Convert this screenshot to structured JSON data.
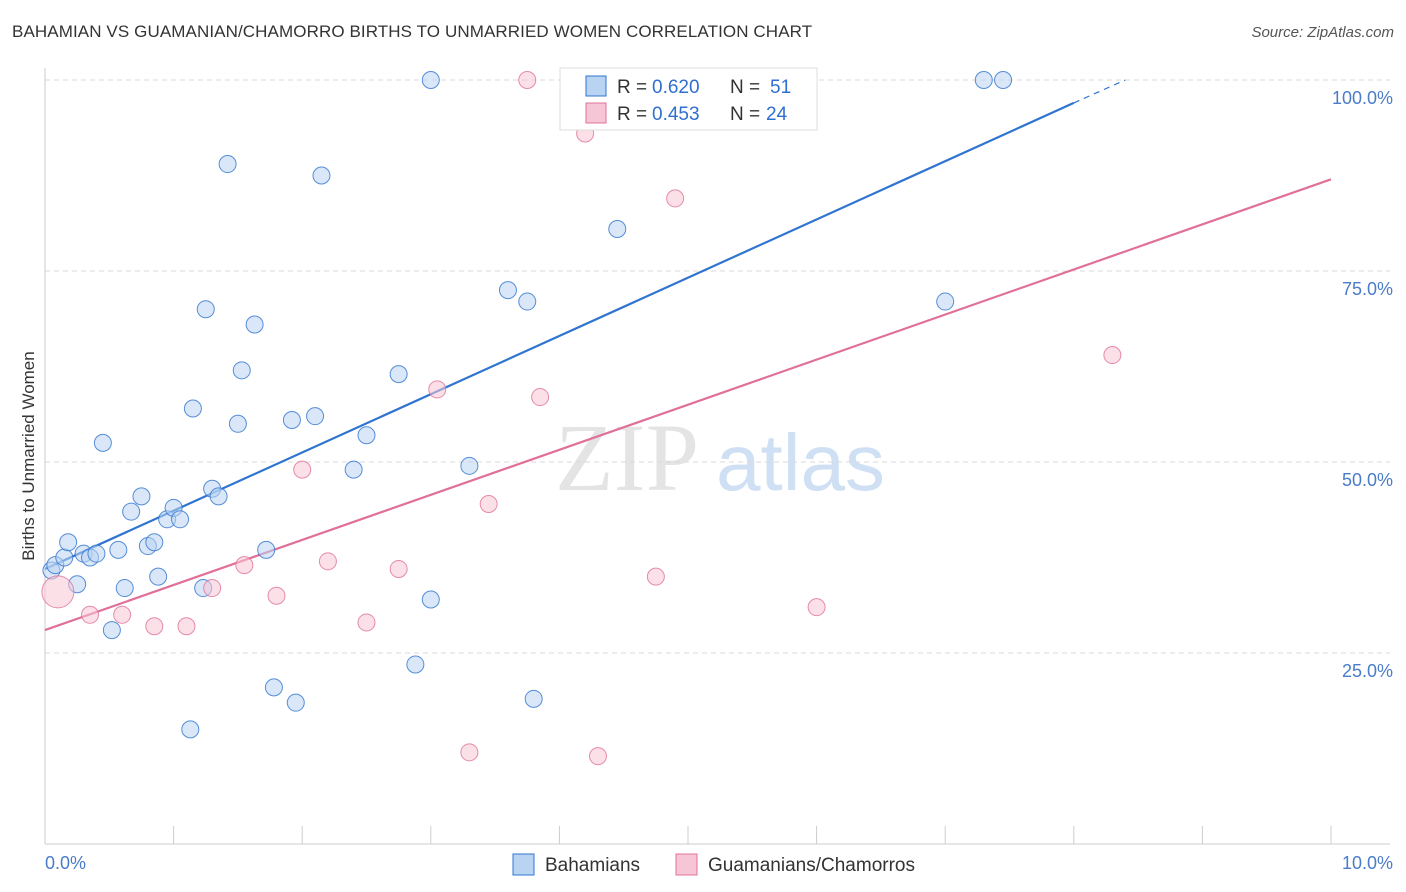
{
  "title": "BAHAMIAN VS GUAMANIAN/CHAMORRO BIRTHS TO UNMARRIED WOMEN CORRELATION CHART",
  "source": "Source: ZipAtlas.com",
  "colors": {
    "blue": "#2f74d0",
    "blue_fill": "#b9d3f3",
    "pink": "#e0709a",
    "pink_fill": "#f7c6d6",
    "accent_text": "#4a7cc9"
  },
  "chart_data": {
    "type": "scatter",
    "ylabel": "Births to Unmarried Women",
    "xlim": [
      0,
      10
    ],
    "ylim": [
      0,
      100
    ],
    "x_tick_labels": [
      "0.0%",
      "10.0%"
    ],
    "y_tick_labels": [
      "25.0%",
      "50.0%",
      "75.0%",
      "100.0%"
    ],
    "y_tick_values": [
      25,
      50,
      75,
      100
    ],
    "grid": true,
    "watermark": {
      "part1": "ZIP",
      "part2": "atlas"
    },
    "legend": [
      {
        "r_label": "R = ",
        "r_value": "0.620",
        "n_label": "N = ",
        "n_value": "51"
      },
      {
        "r_label": "R = ",
        "r_value": "0.453",
        "n_label": "N = ",
        "n_value": "24"
      }
    ],
    "series": [
      {
        "name": "Bahamians",
        "color": "#2f74d0",
        "trend": {
          "x": [
            0.0,
            8.0
          ],
          "y": [
            36.0,
            97.0
          ],
          "dash_to": [
            8.4,
            100.0
          ]
        },
        "points": [
          [
            0.05,
            35.8
          ],
          [
            0.08,
            36.5
          ],
          [
            0.15,
            37.5
          ],
          [
            0.18,
            39.5
          ],
          [
            0.25,
            34.0
          ],
          [
            0.3,
            38.0
          ],
          [
            0.35,
            37.5
          ],
          [
            0.4,
            38.0
          ],
          [
            0.45,
            52.5
          ],
          [
            0.52,
            28.0
          ],
          [
            0.57,
            38.5
          ],
          [
            0.62,
            33.5
          ],
          [
            0.67,
            43.5
          ],
          [
            0.75,
            45.5
          ],
          [
            0.8,
            39.0
          ],
          [
            0.85,
            39.5
          ],
          [
            0.88,
            35.0
          ],
          [
            0.95,
            42.5
          ],
          [
            1.0,
            44.0
          ],
          [
            1.05,
            42.5
          ],
          [
            1.13,
            15.0
          ],
          [
            1.15,
            57.0
          ],
          [
            1.23,
            33.5
          ],
          [
            1.25,
            70.0
          ],
          [
            1.3,
            46.5
          ],
          [
            1.35,
            45.5
          ],
          [
            1.42,
            89.0
          ],
          [
            1.5,
            55.0
          ],
          [
            1.53,
            62.0
          ],
          [
            1.63,
            68.0
          ],
          [
            1.72,
            38.5
          ],
          [
            1.78,
            20.5
          ],
          [
            1.92,
            55.5
          ],
          [
            1.95,
            18.5
          ],
          [
            2.1,
            56.0
          ],
          [
            2.15,
            87.5
          ],
          [
            2.4,
            49.0
          ],
          [
            2.5,
            53.5
          ],
          [
            2.75,
            61.5
          ],
          [
            2.88,
            23.5
          ],
          [
            3.0,
            100.0
          ],
          [
            3.0,
            32.0
          ],
          [
            3.3,
            49.5
          ],
          [
            3.6,
            72.5
          ],
          [
            3.75,
            71.0
          ],
          [
            3.8,
            19.0
          ],
          [
            4.45,
            80.5
          ],
          [
            7.0,
            71.0
          ],
          [
            7.3,
            100.0
          ],
          [
            7.45,
            100.0
          ],
          [
            5.2,
            100.0
          ]
        ]
      },
      {
        "name": "Guamanians/Chamorros",
        "color": "#e0709a",
        "trend": {
          "x": [
            0.0,
            10.0
          ],
          "y": [
            28.0,
            87.0
          ]
        },
        "points": [
          [
            0.1,
            33.0
          ],
          [
            0.35,
            30.0
          ],
          [
            0.6,
            30.0
          ],
          [
            0.85,
            28.5
          ],
          [
            1.1,
            28.5
          ],
          [
            1.3,
            33.5
          ],
          [
            1.55,
            36.5
          ],
          [
            1.8,
            32.5
          ],
          [
            2.0,
            49.0
          ],
          [
            2.2,
            37.0
          ],
          [
            2.5,
            29.0
          ],
          [
            2.75,
            36.0
          ],
          [
            3.05,
            59.5
          ],
          [
            3.3,
            12.0
          ],
          [
            3.45,
            44.5
          ],
          [
            3.75,
            100.0
          ],
          [
            3.85,
            58.5
          ],
          [
            4.2,
            93.0
          ],
          [
            4.3,
            11.5
          ],
          [
            4.75,
            35.0
          ],
          [
            4.9,
            84.5
          ],
          [
            5.5,
            100.0
          ],
          [
            6.0,
            31.0
          ],
          [
            8.3,
            64.0
          ]
        ]
      }
    ]
  }
}
